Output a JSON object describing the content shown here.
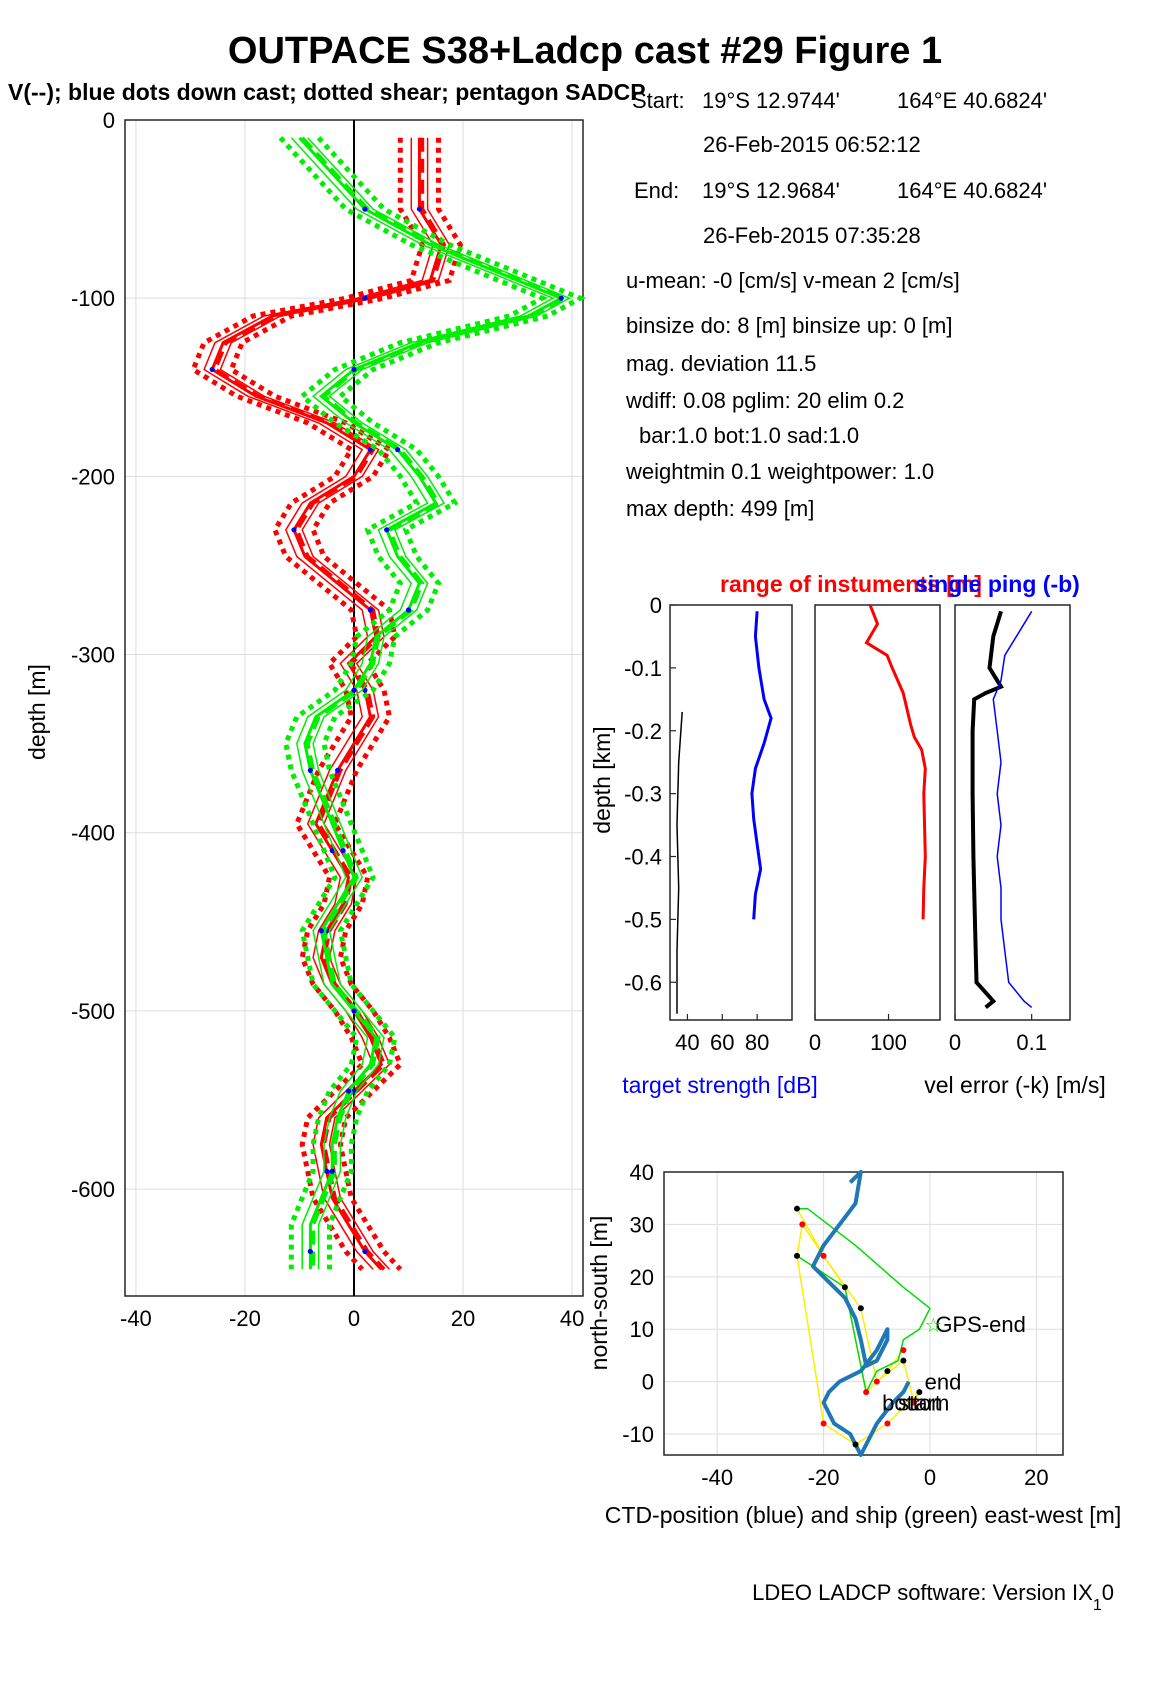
{
  "header": {
    "title": "OUTPACE S38+Ladcp cast #29  Figure 1",
    "subtitle": "V(--); blue dots down cast; dotted shear; pentagon SADCP"
  },
  "info": {
    "start_label": "Start:",
    "start_lat": "19°S 12.9744'",
    "start_lon": "164°E 40.6824'",
    "start_time": "26-Feb-2015 06:52:12",
    "end_label": "End:",
    "end_lat": "19°S 12.9684'",
    "end_lon": "164°E 40.6824'",
    "end_time": "26-Feb-2015 07:35:28",
    "means": "u-mean:  -0 [cm/s]    v-mean   2 [cm/s]",
    "binsize": "binsize do: 8 [m]  binsize up:  0 [m]",
    "magdev": "mag. deviation 11.5",
    "wdiff": "wdiff: 0.08  pglim: 20  elim 0.2",
    "bar": "bar:1.0 bot:1.0 sad:1.0",
    "weight": "weightmin 0.1  weightpower: 1.0",
    "maxdepth": "max depth: 499 [m]"
  },
  "footer": {
    "software": "LDEO LADCP software: Version IX",
    "subscript": "1",
    "suffix": "0"
  },
  "colors": {
    "u": "#ff0000",
    "v": "#00ee00",
    "downcast": "#0000ff",
    "ctd_track": "#1f77b4",
    "ship_track": "#00dd00",
    "link": "#ffee00"
  },
  "chart_data": [
    {
      "id": "profile",
      "type": "line",
      "ylabel": "depth [m]",
      "xlim": [
        -42,
        42
      ],
      "ylim": [
        -660,
        0
      ],
      "xticks": [
        -40,
        -20,
        0,
        20,
        40
      ],
      "yticks": [
        0,
        -100,
        -200,
        -300,
        -400,
        -500,
        -600
      ],
      "grid": true,
      "series": [
        {
          "color": "red",
          "depth": [
            -10,
            -50,
            -70,
            -90,
            -100,
            -110,
            -125,
            -140,
            -155,
            -170,
            -185,
            -200,
            -215,
            -230,
            -245,
            -260,
            -275,
            -290,
            -305,
            -320,
            -335,
            -350,
            -365,
            -380,
            -395,
            -410,
            -425,
            -440,
            -455,
            -470,
            -485,
            -500,
            -515,
            -530,
            -545,
            -560,
            -575,
            -590,
            -605,
            -620,
            -635,
            -645
          ],
          "values": [
            12,
            12,
            16,
            14,
            2,
            -15,
            -24,
            -26,
            -18,
            -5,
            3,
            0,
            -8,
            -11,
            -9,
            -3,
            3,
            4,
            -1,
            2,
            3,
            0,
            -3,
            -5,
            -7,
            -4,
            -1,
            -2,
            -5,
            -6,
            -4,
            0,
            3,
            5,
            0,
            -5,
            -6,
            -5,
            -4,
            -1,
            2,
            5
          ]
        },
        {
          "color": "green",
          "depth": [
            -10,
            -50,
            -70,
            -90,
            -100,
            -110,
            -125,
            -140,
            -155,
            -170,
            -185,
            -200,
            -215,
            -230,
            -245,
            -260,
            -275,
            -290,
            -305,
            -320,
            -335,
            -350,
            -365,
            -380,
            -395,
            -410,
            -425,
            -440,
            -455,
            -470,
            -485,
            -500,
            -515,
            -530,
            -545,
            -560,
            -575,
            -590,
            -605,
            -620,
            -635,
            -645
          ],
          "values": [
            -10,
            2,
            14,
            30,
            38,
            32,
            12,
            0,
            -6,
            0,
            8,
            12,
            15,
            6,
            8,
            12,
            10,
            4,
            3,
            0,
            -7,
            -9,
            -8,
            -6,
            -4,
            -2,
            0,
            -3,
            -6,
            -5,
            -4,
            0,
            4,
            3,
            -1,
            -3,
            -4,
            -4,
            -6,
            -8,
            -8,
            -8
          ]
        }
      ]
    },
    {
      "id": "target-strength",
      "type": "line",
      "ylabel": "depth [km]",
      "xlabel": "target strength [dB]",
      "xlim": [
        30,
        100
      ],
      "ylim": [
        -0.66,
        0
      ],
      "xticks": [
        40,
        60,
        80
      ],
      "yticks": [
        0,
        -0.1,
        -0.2,
        -0.3,
        -0.4,
        -0.5,
        -0.6
      ],
      "series": [
        {
          "color": "blue",
          "depth": [
            -0.01,
            -0.05,
            -0.1,
            -0.15,
            -0.18,
            -0.22,
            -0.26,
            -0.3,
            -0.34,
            -0.38,
            -0.42,
            -0.46,
            -0.5
          ],
          "values": [
            80,
            79,
            81,
            84,
            88,
            84,
            79,
            77,
            78,
            80,
            82,
            79,
            78
          ]
        },
        {
          "color": "black",
          "depth": [
            -0.17,
            -0.25,
            -0.35,
            -0.45,
            -0.55,
            -0.65
          ],
          "values": [
            37,
            35,
            34,
            35,
            34,
            34
          ]
        }
      ]
    },
    {
      "id": "instrument-range",
      "type": "line",
      "title": "range of instuments [m]",
      "xlim": [
        0,
        170
      ],
      "ylim": [
        -0.66,
        0
      ],
      "xticks": [
        0,
        100
      ],
      "series": [
        {
          "color": "red",
          "depth": [
            0,
            -0.03,
            -0.06,
            -0.08,
            -0.1,
            -0.14,
            -0.19,
            -0.21,
            -0.23,
            -0.26,
            -0.3,
            -0.4,
            -0.45,
            -0.5
          ],
          "values": [
            75,
            85,
            70,
            98,
            105,
            120,
            130,
            135,
            145,
            150,
            148,
            150,
            148,
            147
          ]
        }
      ]
    },
    {
      "id": "velocity-error",
      "type": "line",
      "title": "single ping (-b)",
      "xlabel": "vel error (-k) [m/s]",
      "xlim": [
        0,
        0.15
      ],
      "ylim": [
        -0.66,
        0
      ],
      "xticks": [
        0,
        0.1
      ],
      "series": [
        {
          "color": "black",
          "depth": [
            -0.01,
            -0.05,
            -0.1,
            -0.13,
            -0.14,
            -0.15,
            -0.2,
            -0.3,
            -0.4,
            -0.5,
            -0.6,
            -0.63,
            -0.64
          ],
          "values": [
            0.06,
            0.05,
            0.045,
            0.06,
            0.04,
            0.025,
            0.023,
            0.023,
            0.024,
            0.026,
            0.028,
            0.05,
            0.04
          ]
        },
        {
          "color": "blue",
          "depth": [
            -0.01,
            -0.04,
            -0.08,
            -0.12,
            -0.15,
            -0.2,
            -0.25,
            -0.3,
            -0.35,
            -0.4,
            -0.45,
            -0.5,
            -0.55,
            -0.6,
            -0.63,
            -0.64
          ],
          "values": [
            0.1,
            0.085,
            0.065,
            0.06,
            0.05,
            0.055,
            0.06,
            0.055,
            0.06,
            0.055,
            0.06,
            0.06,
            0.065,
            0.07,
            0.09,
            0.1
          ]
        }
      ]
    },
    {
      "id": "position",
      "type": "line",
      "xlabel": "CTD-position (blue) and ship (green) east-west [m]",
      "ylabel": "north-south [m]",
      "xlim": [
        -50,
        25
      ],
      "ylim": [
        -14,
        40
      ],
      "xticks": [
        -40,
        -20,
        0,
        20
      ],
      "yticks": [
        40,
        30,
        20,
        10,
        0,
        -10
      ],
      "grid": true,
      "annotations": [
        {
          "label": "GPS-end",
          "x": 1,
          "y": 11
        },
        {
          "label": "end",
          "x": -1,
          "y": 0
        },
        {
          "label": "bottom",
          "x": -9,
          "y": -4
        },
        {
          "label": "start",
          "x": -6,
          "y": -4
        }
      ],
      "series": [
        {
          "color": "blue",
          "x": [
            -15,
            -13,
            -14,
            -17,
            -20,
            -22,
            -20,
            -16,
            -14,
            -13,
            -12,
            -10,
            -8,
            -8,
            -10,
            -13,
            -17,
            -19,
            -20,
            -18,
            -15,
            -14,
            -13,
            -12,
            -10,
            -7,
            -5,
            -4
          ],
          "y": [
            38,
            40,
            34,
            30,
            26,
            22,
            20,
            16,
            12,
            8,
            3,
            4,
            8,
            10,
            6,
            2,
            0,
            -2,
            -4,
            -8,
            -10,
            -12,
            -14,
            -12,
            -8,
            -4,
            -2,
            0
          ]
        },
        {
          "color": "green",
          "x": [
            -25,
            -23,
            -14,
            -5,
            0,
            -2,
            -5,
            -6,
            -10,
            -12,
            -16,
            -22,
            -25
          ],
          "y": [
            33,
            33,
            26,
            18,
            14,
            10,
            8,
            4,
            2,
            -2,
            18,
            22,
            24
          ]
        },
        {
          "color": "yellow",
          "x": [
            -25,
            -20,
            -13,
            -10,
            -5,
            -3,
            -2,
            -8,
            -14,
            -20,
            -25,
            -24,
            -16,
            -12,
            -8,
            -5
          ],
          "y": [
            33,
            24,
            14,
            0,
            4,
            -4,
            -2,
            -8,
            -12,
            -8,
            24,
            30,
            18,
            -2,
            2,
            6
          ]
        }
      ]
    }
  ]
}
